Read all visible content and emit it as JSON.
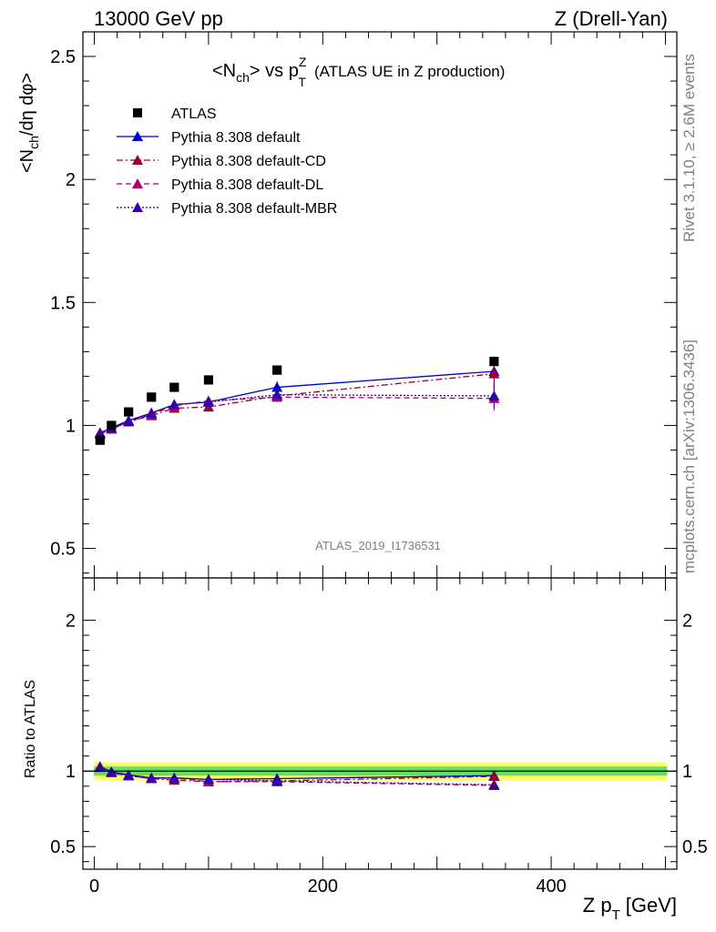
{
  "header": {
    "left": "13000 GeV pp",
    "right": "Z (Drell-Yan)"
  },
  "side": {
    "rivet": "Rivet 3.1.10, ≥ 2.6M events",
    "mcplots": "mcplots.cern.ch [arXiv:1306.3436]"
  },
  "watermark": "ATLAS_2019_I1736531",
  "chart_data": [
    {
      "type": "scatter",
      "panel": "main",
      "title": "<N_ch> vs p_T^Z (ATLAS UE in Z production)",
      "title_main": "<N",
      "title_sub1": "ch",
      "title_mid": "> vs p",
      "title_sup": "Z",
      "title_sub2": "T",
      "title_tail": "(ATLAS UE in Z production)",
      "ylabel": "<N_ch/dη dφ>",
      "ylabel_a": "<N",
      "ylabel_sub": "ch",
      "ylabel_b": "/dη dφ>",
      "xlim": [
        -10,
        510
      ],
      "ylim": [
        0.38,
        2.6
      ],
      "yticks": [
        0.5,
        1,
        1.5,
        2,
        2.5
      ],
      "ytick_labels": [
        "0.5",
        "1",
        "1.5",
        "2",
        "2.5"
      ],
      "x": [
        5,
        15,
        30,
        50,
        70,
        100,
        160,
        350
      ],
      "series": [
        {
          "name": "ATLAS",
          "style": "data",
          "color": "#000000",
          "values": [
            0.94,
            1.0,
            1.055,
            1.115,
            1.155,
            1.185,
            1.225,
            1.26
          ]
        },
        {
          "name": "Pythia 8.308 default",
          "style": "solid",
          "color": "#0000cc",
          "values": [
            0.97,
            0.99,
            1.02,
            1.05,
            1.085,
            1.095,
            1.155,
            1.22
          ],
          "errors": [
            0.01,
            0.01,
            0.01,
            0.01,
            0.01,
            0.01,
            0.025,
            0.06
          ]
        },
        {
          "name": "Pythia 8.308 default-CD",
          "style": "dashdot",
          "color": "#990033",
          "values": [
            0.97,
            0.985,
            1.015,
            1.04,
            1.07,
            1.075,
            1.12,
            1.21
          ],
          "errors": [
            0.01,
            0.01,
            0.01,
            0.01,
            0.01,
            0.01,
            0.02,
            0.06
          ]
        },
        {
          "name": "Pythia 8.308 default-DL",
          "style": "dashed",
          "color": "#aa0066",
          "values": [
            0.965,
            0.985,
            1.015,
            1.045,
            1.08,
            1.1,
            1.115,
            1.11
          ],
          "errors": [
            0.01,
            0.01,
            0.01,
            0.01,
            0.01,
            0.01,
            0.02,
            0.05
          ]
        },
        {
          "name": "Pythia 8.308 default-MBR",
          "style": "dotted",
          "color": "#3300aa",
          "values": [
            0.965,
            0.99,
            1.015,
            1.05,
            1.085,
            1.095,
            1.125,
            1.12
          ],
          "errors": [
            0.01,
            0.01,
            0.01,
            0.01,
            0.01,
            0.01,
            0.02,
            0.05
          ]
        }
      ]
    },
    {
      "type": "scatter",
      "panel": "ratio",
      "ylabel": "Ratio to ATLAS",
      "xlabel": "Z p_T [GeV]",
      "xlabel_a": "Z p",
      "xlabel_sub": "T",
      "xlabel_b": "[GeV]",
      "xlim": [
        -10,
        510
      ],
      "ylim": [
        0.35,
        2.28
      ],
      "yticks": [
        0.5,
        1,
        2
      ],
      "ytick_labels": [
        "0.5",
        "1",
        "2"
      ],
      "xticks": [
        0,
        200,
        400
      ],
      "xtick_labels": [
        "0",
        "200",
        "400"
      ],
      "x": [
        5,
        15,
        30,
        50,
        70,
        100,
        160,
        350
      ],
      "band_inner": 0.03,
      "band_outer": 0.06,
      "band_colors": {
        "inner": "#66dd66",
        "outer": "#ffff66"
      },
      "series": [
        {
          "name": "Pythia 8.308 default",
          "style": "solid",
          "color": "#0000cc",
          "values": [
            1.03,
            0.995,
            0.975,
            0.955,
            0.955,
            0.945,
            0.95,
            0.97
          ]
        },
        {
          "name": "Pythia 8.308 default-CD",
          "style": "dashdot",
          "color": "#990033",
          "values": [
            1.03,
            0.99,
            0.97,
            0.95,
            0.94,
            0.93,
            0.935,
            0.965
          ]
        },
        {
          "name": "Pythia 8.308 default-DL",
          "style": "dashed",
          "color": "#aa0066",
          "values": [
            1.025,
            0.99,
            0.97,
            0.95,
            0.955,
            0.93,
            0.93,
            0.905
          ]
        },
        {
          "name": "Pythia 8.308 default-MBR",
          "style": "dotted",
          "color": "#3300aa",
          "values": [
            1.025,
            0.995,
            0.97,
            0.955,
            0.955,
            0.945,
            0.935,
            0.91
          ]
        }
      ]
    }
  ]
}
